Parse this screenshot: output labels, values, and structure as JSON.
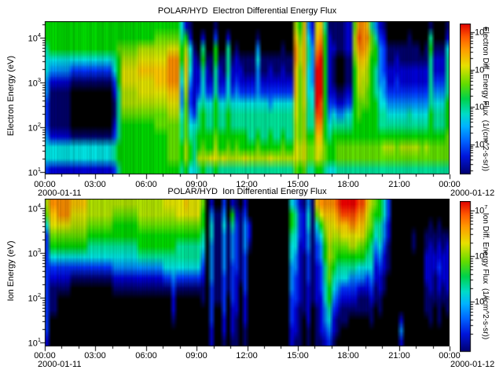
{
  "axes": {
    "log_base": "10"
  },
  "colors": {
    "background": "#ffffff",
    "axis": "#000000",
    "palette": [
      "#000000",
      "#00006e",
      "#0000d8",
      "#0033ff",
      "#008cff",
      "#00e6e6",
      "#00e69b",
      "#00dc00",
      "#64e600",
      "#b4e600",
      "#e6e600",
      "#ffc800",
      "#ff9100",
      "#ff4b00",
      "#f00000"
    ],
    "cbar_stops": [
      [
        0,
        "#e10000"
      ],
      [
        0.09,
        "#ff5a00"
      ],
      [
        0.17,
        "#ff9a00"
      ],
      [
        0.28,
        "#e8e000"
      ],
      [
        0.4,
        "#64dc00"
      ],
      [
        0.5,
        "#00d24b"
      ],
      [
        0.6,
        "#00dcc8"
      ],
      [
        0.68,
        "#00b4ff"
      ],
      [
        0.78,
        "#0064ff"
      ],
      [
        0.88,
        "#0016dc"
      ],
      [
        1,
        "#00006e"
      ]
    ]
  },
  "chart_data": [
    {
      "type": "heatmap",
      "title": "POLAR/HYD  Electron Differential Energy Flux",
      "ylabel": "Electron Energy (eV)",
      "y_scale": "log",
      "y_tick_exponents": [
        "4",
        "3",
        "2",
        "1"
      ],
      "x_ticks": [
        "00:00",
        "03:00",
        "06:00",
        "09:00",
        "12:00",
        "15:00",
        "18:00",
        "21:00",
        "00:00"
      ],
      "x_major_step_hours": 3,
      "x_minor_step_hours": 1,
      "date_start": "2000-01-11",
      "date_end": "2000-01-12",
      "colorbar": {
        "title": "Electron Diff. Energy Flux  (1/(cm^2-s-sr))",
        "scale": "log",
        "tick_exponents": [
          "8",
          "7",
          "6",
          "5"
        ]
      },
      "grid_note": "rows top(10^4.4 eV) to bottom(10^1 eV), 96 columns = 24 h at 15 min; hex char 0-e indexes colors.palette (0=black/no flux, e=red/max flux)",
      "grid_rows": [
        [
          "77777777777777777777777777777777",
          "5210",
          "000010000000",
          "00000000000",
          "97b42ab61111228ccb6421",
          "000000000010001"
        ],
        [
          "77777777777777777777777777",
          "888888",
          "6720",
          "020030020000",
          "00100000000",
          "b8b53bc72111229dcc8632",
          "000001000060002"
        ],
        [
          "6",
          "7777777777777777",
          "8",
          "8888",
          "9999",
          "999",
          "aaa",
          "7951",
          "060070060100",
          "00400000100",
          "c9b64cd72211229ccb8743",
          "111111110171115"
        ],
        [
          "5",
          "555555555555555",
          "6",
          "7",
          "9999",
          "aaaa",
          "aaa",
          "ccc",
          "7b62",
          "171171161211",
          "11511111111",
          "c9b64de72100118bba7743",
          "112111111162226"
        ],
        [
          "5",
          "44444",
          "3333333333",
          "5",
          "7",
          "aaaa",
          "bbbb",
          "bbb",
          "ccc",
          "6b52",
          "262162162221",
          "11411211211",
          "b8b54ee72100117aa97643",
          "222222222262226"
        ],
        [
          "4",
          "22222",
          "1111111111",
          "3",
          "7",
          "aaaa",
          "aaaa",
          "bbb",
          "ccc",
          "5a42",
          "252262252322",
          "22422222222",
          "b8a54ee72100117a997644",
          "223222222263336"
        ],
        [
          "4",
          "11111",
          "0000000000",
          "2",
          "6",
          "9999",
          "aaaa",
          "aaa",
          "bbb",
          "4932",
          "353363353433",
          "33433333333",
          "b8a55ee722112279987654",
          "333333333364446"
        ],
        [
          "3",
          "11111",
          "0000000000",
          "1",
          "6",
          "9999",
          "9999",
          "999",
          "aaa",
          "4832",
          "565575565555",
          "55555455555",
          "a8a65ed733223378887755",
          "444444444465557"
        ],
        [
          "3",
          "11111",
          "0000000000",
          "1",
          "6",
          "8888",
          "8888",
          "888",
          "999",
          "5843",
          "676676676666",
          "66666666666",
          "a8966dd745445578777766",
          "555556555576667"
        ],
        [
          "3",
          "11111",
          "0000000000",
          "2",
          "6",
          "7777",
          "7777",
          "888",
          "888",
          "6855",
          "676676676666",
          "66666666666",
          "98966cc756666677777766",
          "666666666676667"
        ],
        [
          "4",
          "22222",
          "1111111111",
          "3",
          "6",
          "7777",
          "7777",
          "777",
          "888",
          "6866",
          "777787777777",
          "66766766766",
          "98977bb767777777777777",
          "777777777777778"
        ],
        [
          "5",
          "55555",
          "5555555555",
          "6",
          "7",
          "7777",
          "7777",
          "777",
          "888",
          "7976",
          "787797787877",
          "77877777877",
          "a9a88aa877888888888889",
          "998999998988888"
        ],
        [
          "5",
          "55555",
          "5555555555",
          "6",
          "7",
          "7777",
          "7777",
          "777",
          "888",
          "7976",
          "999aa9a9999a",
          "99999a99999",
          "a9a88a9877888888888888",
          "888888888888888"
        ],
        [
          "3",
          "22222",
          "2222222222",
          "3",
          "6",
          "7777",
          "7777",
          "777",
          "777",
          "6755",
          "676676666666",
          "66666666666",
          "8786677655666666666666",
          "666666666666666"
        ]
      ]
    },
    {
      "type": "heatmap",
      "title": "POLAR/HYD  Ion Differential Energy Flux",
      "ylabel": "Ion Energy (eV)",
      "y_scale": "log",
      "y_tick_exponents": [
        "4",
        "3",
        "2",
        "1"
      ],
      "x_ticks": [
        "00:00",
        "03:00",
        "06:00",
        "09:00",
        "12:00",
        "15:00",
        "18:00",
        "21:00",
        "00:00"
      ],
      "x_major_step_hours": 3,
      "x_minor_step_hours": 1,
      "date_start": "2000-01-11",
      "date_end": "2000-01-12",
      "colorbar": {
        "title": "Ion Diff. Energy Flux  (1/(cm^2-s-sr))",
        "scale": "log",
        "tick_exponents": [
          "7",
          "6",
          "5"
        ]
      },
      "grid_note": "rows top(10^4.4 eV) to bottom(10^1 eV), 96 columns = 24 h at 15 min; hex char 0-e indexes colors.palette",
      "grid_rows": [
        [
          "9cccccbbbb",
          "999999999999999999",
          "aaaaa",
          "b",
          "aaa",
          "80200302102",
          "0000000000",
          "542141",
          "bccccd",
          "eeeedd",
          "b98753",
          "00000000",
          "000000"
        ],
        [
          "8bbccc",
          "aaaa",
          "999999",
          "888888",
          "999999",
          "999",
          "aaaaaa",
          "70411407213",
          "0000000000",
          "763251",
          "8abbbc",
          "ddddcc",
          "a87753",
          "00000000",
          "000000"
        ],
        [
          "5aaaaa",
          "9999",
          "888888",
          "777777",
          "888888",
          "888",
          "888888",
          "70511516314",
          "2000000000",
          "763251",
          "579aab",
          "bbccbb",
          "986642",
          "00000000",
          "010100"
        ],
        [
          "3888888888",
          "777777777777777777777777777",
          "60511414314",
          "2000000000",
          "653241",
          "458a99",
          "aaaaaa",
          "875642",
          "00000100",
          "111111"
        ],
        [
          "3777777777",
          "666666666666",
          "777777777",
          "666666",
          "50411414314",
          "1000000000",
          "552241",
          "347988",
          "889988",
          "764531",
          "00000100",
          "121212"
        ],
        [
          "3",
          "555555555555555555555",
          "666666666666666",
          "40411414313",
          "0000000000",
          "542131",
          "347987",
          "777777",
          "663421",
          "00000000",
          "222222"
        ],
        [
          "3",
          "333333333333333",
          "444444444444",
          "555555555",
          "30411413313",
          "0000000000",
          "442131",
          "236876",
          "666655",
          "552321",
          "00000000",
          "222322"
        ],
        [
          "3",
          "22222",
          "1111111111",
          "222222222222",
          "33",
          "4",
          "333333",
          "20411313213",
          "0000000000",
          "432131",
          "236865",
          "554444",
          "342210",
          "00000000",
          "221222"
        ],
        [
          "3",
          "11111",
          "0000000000",
          "111111111111",
          "11",
          "3",
          "111111",
          "10311313203",
          "0000000000",
          "432121",
          "235754",
          "333322",
          "231210",
          "00000000",
          "121212"
        ],
        [
          "3",
          "11",
          "000000000000000000000000000",
          "2",
          "000000",
          "10311303202",
          "0000000000",
          "332121",
          "225743",
          "222211",
          "121100",
          "00000000",
          "111111"
        ],
        [
          "3",
          "11",
          "000000000000000000000000000",
          "2",
          "000000",
          "00300302202",
          "0000000000",
          "321120",
          "124632",
          "111111",
          "110100",
          "00000000",
          "110101"
        ],
        [
          "3",
          "00000000000000000000000000000",
          "1",
          "000000",
          "00300202102",
          "0000000000",
          "321020",
          "124521",
          "110000",
          "010000",
          "00200000",
          "010100"
        ],
        [
          "3",
          "000000000000000000000000000000000000",
          "00200202101",
          "0000000000",
          "221010",
          "123421",
          "000000",
          "000000",
          "00400000",
          "000000"
        ],
        [
          "2",
          "000000000000000000000000000000000000",
          "00200101101",
          "0000000000",
          "211010",
          "112310",
          "000000",
          "000000",
          "00200000",
          "000000"
        ]
      ]
    }
  ]
}
